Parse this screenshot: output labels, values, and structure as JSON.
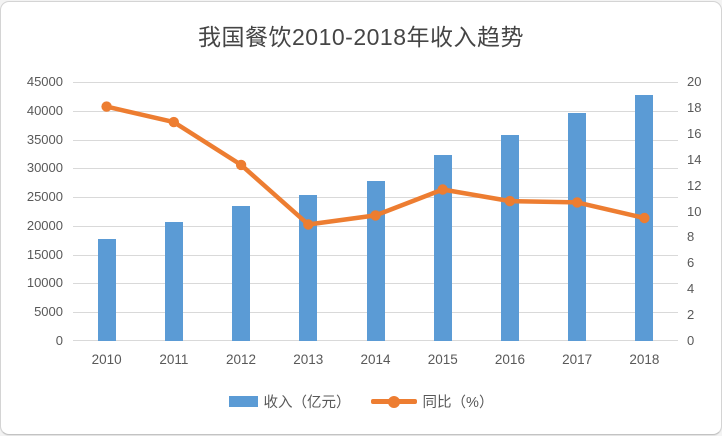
{
  "chart_data": {
    "type": "combo-bar-line",
    "title": "我国餐饮2010-2018年收入趋势",
    "categories": [
      "2010",
      "2011",
      "2012",
      "2013",
      "2014",
      "2015",
      "2016",
      "2017",
      "2018"
    ],
    "series": [
      {
        "name": "收入（亿元）",
        "type": "bar",
        "axis": "left",
        "color": "#5B9BD5",
        "values": [
          17648,
          20635,
          23448,
          25392,
          27860,
          32310,
          35799,
          39644,
          42716
        ]
      },
      {
        "name": "同比（%）",
        "type": "line",
        "axis": "right",
        "color": "#ED7D31",
        "values": [
          18.1,
          16.9,
          13.6,
          9.0,
          9.7,
          11.7,
          10.8,
          10.7,
          9.5
        ]
      }
    ],
    "left_axis": {
      "min": 0,
      "max": 45000,
      "step": 5000,
      "tick_labels": [
        "45000",
        "40000",
        "35000",
        "30000",
        "25000",
        "20000",
        "15000",
        "10000",
        "5000",
        "0"
      ]
    },
    "right_axis": {
      "min": 0,
      "max": 20,
      "step": 2,
      "tick_labels": [
        "20",
        "18",
        "16",
        "14",
        "12",
        "10",
        "8",
        "6",
        "4",
        "2",
        "0"
      ]
    },
    "grid": true,
    "legend_position": "bottom",
    "colors": {
      "gridline": "#D9D9D9",
      "axis_text": "#595959",
      "title_text": "#454545"
    }
  }
}
